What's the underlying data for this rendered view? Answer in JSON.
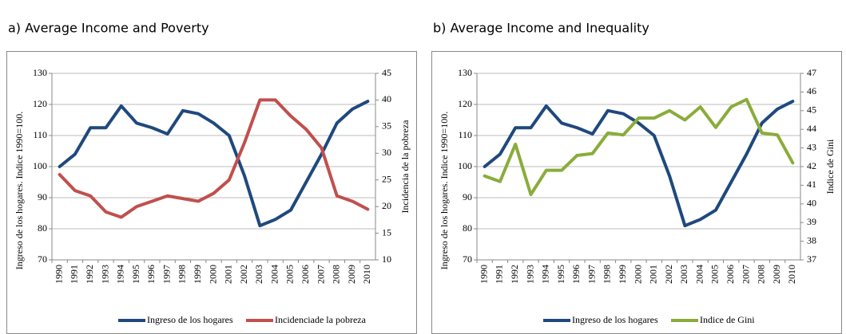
{
  "chart_data": [
    {
      "type": "line",
      "title": "a) Average Income and Poverty",
      "y_label": "Ingreso de los hogares. Indice 1990=100.",
      "y2_label": "Incidencia de la pobreza",
      "categories": [
        "1990",
        "1991",
        "1992",
        "1993",
        "1994",
        "1995",
        "1996",
        "1997",
        "1998",
        "1999",
        "2000",
        "2001",
        "2002",
        "2003",
        "2004",
        "2005",
        "2006",
        "2007",
        "2008",
        "2009",
        "2010"
      ],
      "series": [
        {
          "name": "Ingreso de los hogares",
          "color": "#1f497d",
          "values": [
            100,
            104,
            112.5,
            112.5,
            119.5,
            114,
            112.5,
            110.5,
            118,
            117,
            114,
            110,
            97,
            81,
            83,
            86,
            95,
            104,
            114,
            118.5,
            121
          ]
        },
        {
          "name": "Incidenciade la pobreza",
          "color": "#c0504d",
          "axis": "y2",
          "values": [
            26,
            23,
            22,
            19,
            18,
            20,
            21,
            22,
            21.5,
            21,
            22.5,
            25,
            32,
            40,
            40,
            37,
            34.5,
            31,
            22,
            21,
            19.5
          ]
        }
      ],
      "ylim": [
        70,
        130
      ],
      "yticks": [
        70,
        80,
        90,
        100,
        110,
        120,
        130
      ],
      "y2lim": [
        10,
        45
      ],
      "y2ticks": [
        10,
        15,
        20,
        25,
        30,
        35,
        40,
        45
      ],
      "grid": true,
      "legend": "bottom"
    },
    {
      "type": "line",
      "title": "b) Average Income and Inequality",
      "y_label": "Ingreso de los hogares. Indice 1990=100.",
      "y2_label": "Indice de Gini",
      "categories": [
        "1990",
        "1991",
        "1992",
        "1993",
        "1994",
        "1995",
        "1996",
        "1997",
        "1998",
        "1999",
        "2000",
        "2001",
        "2002",
        "2003",
        "2004",
        "2005",
        "2006",
        "2007",
        "2008",
        "2009",
        "2010"
      ],
      "series": [
        {
          "name": "Ingreso de los hogares",
          "color": "#1f497d",
          "values": [
            100,
            104,
            112.5,
            112.5,
            119.5,
            114,
            112.5,
            110.5,
            118,
            117,
            114,
            110,
            97,
            81,
            83,
            86,
            95,
            104,
            114,
            118.5,
            121
          ]
        },
        {
          "name": "Indice de Gini",
          "color": "#8aac3c",
          "axis": "y2",
          "values": [
            41.5,
            41.2,
            43.2,
            40.5,
            41.8,
            41.8,
            42.6,
            42.7,
            43.8,
            43.7,
            44.6,
            44.6,
            45,
            44.5,
            45.2,
            44.1,
            45.2,
            45.6,
            43.8,
            43.7,
            42.2
          ]
        }
      ],
      "ylim": [
        70,
        130
      ],
      "yticks": [
        70,
        80,
        90,
        100,
        110,
        120,
        130
      ],
      "y2lim": [
        37,
        47
      ],
      "y2ticks": [
        37,
        38,
        39,
        40,
        41,
        42,
        43,
        44,
        45,
        46,
        47
      ],
      "grid": true,
      "legend": "bottom"
    }
  ]
}
